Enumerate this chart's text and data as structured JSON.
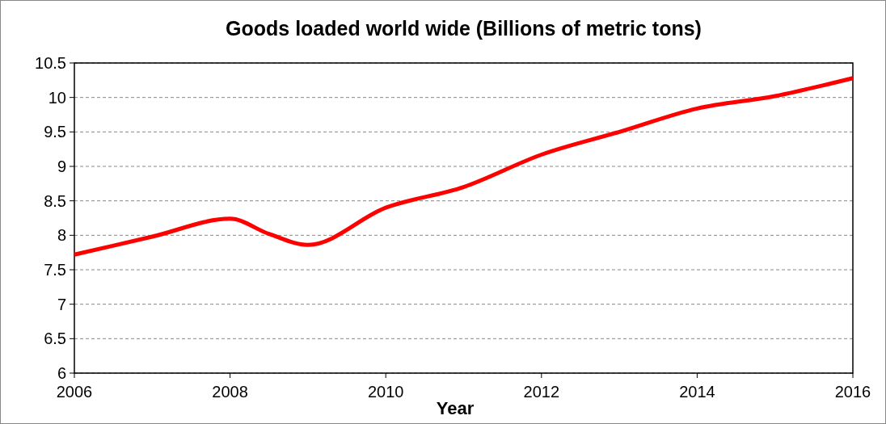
{
  "chart_data": {
    "type": "line",
    "title": "Goods loaded world wide (Billions of metric tons)",
    "xlabel": "Year",
    "x": [
      2006,
      2007,
      2008,
      2008.5,
      2009,
      2010,
      2011,
      2012,
      2013,
      2014,
      2015,
      2016
    ],
    "series": [
      {
        "color": "#ff0000",
        "values": [
          7.72,
          7.98,
          8.24,
          8.02,
          7.86,
          8.4,
          8.7,
          9.17,
          9.5,
          9.84,
          10.02,
          10.28
        ]
      }
    ],
    "xlim": [
      2006,
      2016
    ],
    "xticks": [
      2006,
      2008,
      2010,
      2012,
      2014,
      2016
    ],
    "ylim": [
      6,
      10.5
    ],
    "yticks": [
      6,
      6.5,
      7,
      7.5,
      8,
      8.5,
      9,
      9.5,
      10,
      10.5
    ],
    "grid": "y",
    "line_style": "solid"
  }
}
